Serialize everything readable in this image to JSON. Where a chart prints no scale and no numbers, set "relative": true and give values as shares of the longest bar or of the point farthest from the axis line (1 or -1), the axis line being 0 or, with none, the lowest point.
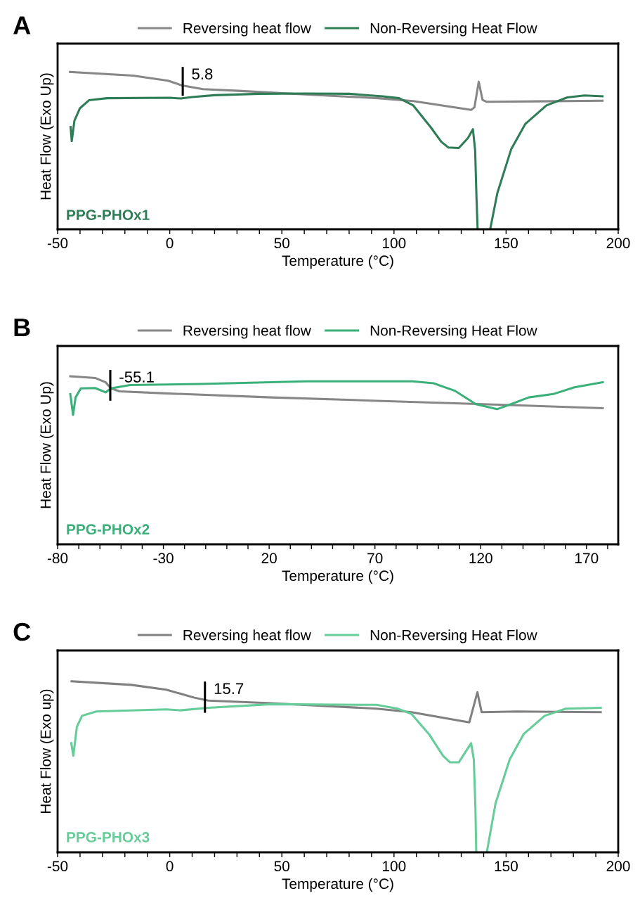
{
  "chart_data": [
    {
      "type": "line",
      "title": "A",
      "xlabel": "Temperature (°C)",
      "ylabel": "Heat Flow (Exo Up)",
      "relative": true,
      "legend": "top",
      "tick_labels": "x",
      "xlim": [
        -50,
        200
      ],
      "xticks": [
        -50,
        {
          "value": -40,
          "label": null
        },
        {
          "value": -30,
          "label": null
        },
        {
          "value": -20,
          "label": null
        },
        {
          "value": -10,
          "label": null
        },
        0,
        {
          "value": 10,
          "label": null
        },
        {
          "value": 20,
          "label": null
        },
        {
          "value": 30,
          "label": null
        },
        {
          "value": 40,
          "label": null
        },
        50,
        {
          "value": 60,
          "label": null
        },
        {
          "value": 70,
          "label": null
        },
        {
          "value": 80,
          "label": null
        },
        {
          "value": 90,
          "label": null
        },
        100,
        {
          "value": 110,
          "label": null
        },
        {
          "value": 120,
          "label": null
        },
        {
          "value": 130,
          "label": null
        },
        {
          "value": 140,
          "label": null
        },
        150,
        {
          "value": 160,
          "label": null
        },
        {
          "value": 170,
          "label": null
        },
        {
          "value": 180,
          "label": null
        },
        {
          "value": 190,
          "label": null
        },
        200
      ],
      "annotations": [
        {
          "text": "5.8",
          "x": 5.8,
          "y": 0.94
        },
        "PPG-PHOx1"
      ],
      "series": [
        {
          "name": "Reversing heat flow",
          "color": "#878787",
          "x": [
            -44.5,
            -16.4,
            -0.8,
            5.5,
            14.8,
            30.5,
            61.7,
            92.9,
            108.6,
            134.4,
            135.9,
            137.8,
            139.5,
            141.4,
            193
          ],
          "values": [
            1.0,
            0.977,
            0.944,
            0.914,
            0.891,
            0.88,
            0.856,
            0.833,
            0.815,
            0.759,
            0.775,
            0.938,
            0.822,
            0.81,
            0.817
          ]
        },
        {
          "name": "Non-Reversing Heat Flow",
          "color": "#2e7d57",
          "x": [
            -44.2,
            -43.7,
            -42.5,
            -40,
            -36,
            -28,
            0,
            5,
            10,
            20,
            40,
            60,
            80,
            95,
            102.3,
            108.6,
            116.4,
            121.1,
            124.2,
            128.9,
            133,
            135.2,
            136.2,
            136.8,
            137.3,
            140,
            142.9,
            146.1,
            152.3,
            158.6,
            168,
            177.3,
            185,
            193
          ],
          "values": [
            0.65,
            0.56,
            0.69,
            0.77,
            0.82,
            0.833,
            0.836,
            0.831,
            0.84,
            0.852,
            0.861,
            0.863,
            0.861,
            0.845,
            0.833,
            0.787,
            0.648,
            0.556,
            0.52,
            0.516,
            0.58,
            0.636,
            0.5,
            0.2,
            0.0,
            null,
            0.0,
            0.23,
            0.51,
            0.67,
            0.787,
            0.838,
            0.85,
            0.845
          ]
        }
      ]
    },
    {
      "type": "line",
      "title": "B",
      "xlabel": "Temperature (°C)",
      "ylabel": "Heat Flow (Exo Up)",
      "relative": true,
      "legend": "top",
      "tick_labels": "x",
      "xlim": [
        -80,
        185
      ],
      "xticks": [
        -80,
        {
          "value": -70,
          "label": null
        },
        {
          "value": -60,
          "label": null
        },
        {
          "value": -50,
          "label": null
        },
        {
          "value": -40,
          "label": null
        },
        -30,
        {
          "value": -20,
          "label": null
        },
        {
          "value": -10,
          "label": null
        },
        {
          "value": 0,
          "label": null
        },
        {
          "value": 10,
          "label": null
        },
        20,
        {
          "value": 30,
          "label": null
        },
        {
          "value": 40,
          "label": null
        },
        {
          "value": 50,
          "label": null
        },
        {
          "value": 60,
          "label": null
        },
        70,
        {
          "value": 80,
          "label": null
        },
        {
          "value": 90,
          "label": null
        },
        {
          "value": 100,
          "label": null
        },
        {
          "value": 110,
          "label": null
        },
        120,
        {
          "value": 130,
          "label": null
        },
        {
          "value": 140,
          "label": null
        },
        {
          "value": 150,
          "label": null
        },
        {
          "value": 160,
          "label": null
        },
        170,
        {
          "value": 180,
          "label": null
        }
      ],
      "annotations": [
        {
          "text": "-55.1",
          "x": -55.1,
          "y": 0.946
        },
        "PPG-PHOx2"
      ],
      "series": [
        {
          "name": "Reversing heat flow",
          "color": "#878787",
          "x": [
            -74,
            -62.3,
            -57.3,
            -54.8,
            -50.7,
            -29,
            21,
            71,
            121,
            177.7
          ],
          "values": [
            1.0,
            0.99,
            0.964,
            0.928,
            0.91,
            0.898,
            0.874,
            0.854,
            0.834,
            0.81
          ]
        },
        {
          "name": "Non-Reversing Heat Flow",
          "color": "#3cb07a",
          "x": [
            -74,
            -72.7,
            -71.5,
            -69,
            -62.3,
            -57.3,
            -54.8,
            -45.7,
            -12.3,
            37.7,
            87.7,
            97.7,
            107.7,
            117.7,
            127.7,
            134.3,
            142.7,
            154.3,
            164.3,
            177.7
          ],
          "values": [
            0.894,
            0.77,
            0.874,
            0.928,
            0.93,
            0.904,
            0.928,
            0.948,
            0.954,
            0.97,
            0.97,
            0.958,
            0.914,
            0.834,
            0.804,
            0.834,
            0.874,
            0.894,
            0.934,
            0.964
          ]
        }
      ]
    },
    {
      "type": "line",
      "title": "C",
      "xlabel": "Temperature (°C)",
      "ylabel": "Heat Flow (Exo up)",
      "relative": true,
      "legend": "top",
      "tick_labels": "x",
      "xlim": [
        -50,
        200
      ],
      "xticks": [
        -50,
        {
          "value": -40,
          "label": null
        },
        {
          "value": -30,
          "label": null
        },
        {
          "value": -20,
          "label": null
        },
        {
          "value": -10,
          "label": null
        },
        0,
        {
          "value": 10,
          "label": null
        },
        {
          "value": 20,
          "label": null
        },
        {
          "value": 30,
          "label": null
        },
        {
          "value": 40,
          "label": null
        },
        50,
        {
          "value": 60,
          "label": null
        },
        {
          "value": 70,
          "label": null
        },
        {
          "value": 80,
          "label": null
        },
        {
          "value": 90,
          "label": null
        },
        100,
        {
          "value": 110,
          "label": null
        },
        {
          "value": 120,
          "label": null
        },
        {
          "value": 130,
          "label": null
        },
        {
          "value": 140,
          "label": null
        },
        150,
        {
          "value": 160,
          "label": null
        },
        {
          "value": 170,
          "label": null
        },
        {
          "value": 180,
          "label": null
        },
        {
          "value": 190,
          "label": null
        },
        200
      ],
      "annotations": [
        {
          "text": "15.7",
          "x": 15.7,
          "y": 0.907
        },
        "PPG-PHOx3"
      ],
      "series": [
        {
          "name": "Reversing heat flow",
          "color": "#808080",
          "x": [
            -43.75,
            -17.2,
            -1.6,
            11,
            17.2,
            45.3,
            92.2,
            107.8,
            133.6,
            137.2,
            139.1,
            154.7,
            192.2
          ],
          "values": [
            1.0,
            0.979,
            0.951,
            0.904,
            0.887,
            0.872,
            0.84,
            0.819,
            0.76,
            0.936,
            0.819,
            0.823,
            0.819
          ]
        },
        {
          "name": "Non-Reversing Heat Flow",
          "color": "#66cc99",
          "x": [
            -43.9,
            -43,
            -41.4,
            -39.1,
            -32.8,
            -1.6,
            4.7,
            17.2,
            45.3,
            92.2,
            101.6,
            107.8,
            115.6,
            121.9,
            125,
            128.9,
            134.4,
            135.6,
            136.3,
            136.7,
            139,
            141.4,
            145.3,
            151.6,
            157.8,
            167.2,
            176.6,
            192.2
          ],
          "values": [
            0.638,
            0.564,
            0.734,
            0.798,
            0.823,
            0.836,
            0.83,
            0.845,
            0.866,
            0.862,
            0.84,
            0.809,
            0.691,
            0.564,
            0.526,
            0.526,
            0.638,
            0.543,
            0.266,
            0.0,
            null,
            0.0,
            0.287,
            0.543,
            0.691,
            0.798,
            0.84,
            0.845
          ]
        }
      ]
    }
  ]
}
